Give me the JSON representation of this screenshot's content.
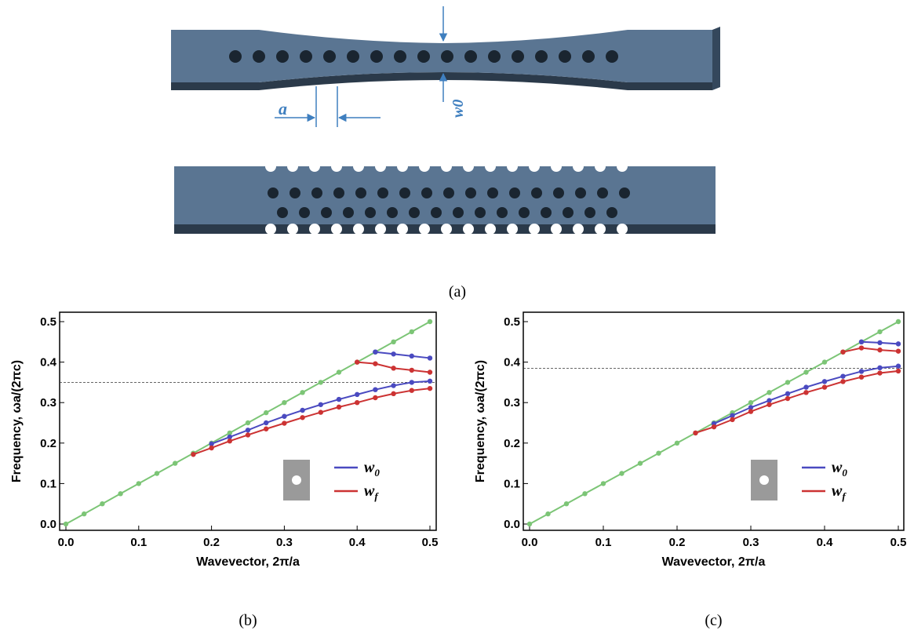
{
  "panel_a": {
    "caption": "(a)",
    "label_a": "a",
    "label_w0": "w0"
  },
  "chart_data": [
    {
      "type": "line",
      "caption": "(b)",
      "xlabel": "Wavevector, 2π/a",
      "ylabel": "Frequency, ωa/(2πc)",
      "xlim": [
        0,
        0.5
      ],
      "ylim": [
        0,
        0.5
      ],
      "xticks": [
        {
          "value": 0,
          "label": "0.0"
        },
        0.1,
        0.2,
        0.3,
        0.4,
        0.5
      ],
      "yticks": [
        {
          "value": 0,
          "label": "0.0"
        },
        0.1,
        0.2,
        0.3,
        0.4,
        0.5
      ],
      "reference_line": 0.35,
      "series": [
        {
          "color": "#7cc576",
          "x": [
            0,
            0.025,
            0.05,
            0.075,
            0.1,
            0.125,
            0.15,
            0.175,
            0.2,
            0.225,
            0.25,
            0.275,
            0.3,
            0.325,
            0.35,
            0.375,
            0.4,
            0.425,
            0.45,
            0.475,
            0.5
          ],
          "values": [
            0,
            0.025,
            0.05,
            0.075,
            0.1,
            0.125,
            0.15,
            0.175,
            0.2,
            0.225,
            0.25,
            0.275,
            0.3,
            0.325,
            0.35,
            0.375,
            0.4,
            0.425,
            0.45,
            0.475,
            0.5
          ]
        },
        {
          "name": "w0",
          "color": "#4a4ac0",
          "x": [
            0.2,
            0.225,
            0.25,
            0.275,
            0.3,
            0.325,
            0.35,
            0.375,
            0.4,
            0.425,
            0.45,
            0.475,
            0.5
          ],
          "values": [
            0.198,
            0.215,
            0.232,
            0.25,
            0.266,
            0.281,
            0.295,
            0.308,
            0.32,
            0.332,
            0.342,
            0.35,
            0.353
          ]
        },
        {
          "name": "w0",
          "color": "#4a4ac0",
          "x": [
            0.425,
            0.45,
            0.475,
            0.5
          ],
          "values": [
            0.425,
            0.42,
            0.415,
            0.41
          ]
        },
        {
          "name": "wf",
          "color": "#cc3333",
          "x": [
            0.175,
            0.2,
            0.225,
            0.25,
            0.275,
            0.3,
            0.325,
            0.35,
            0.375,
            0.4,
            0.425,
            0.45,
            0.475,
            0.5
          ],
          "values": [
            0.172,
            0.188,
            0.205,
            0.22,
            0.235,
            0.249,
            0.263,
            0.276,
            0.289,
            0.3,
            0.312,
            0.322,
            0.33,
            0.335
          ]
        },
        {
          "name": "wf",
          "color": "#cc3333",
          "x": [
            0.4,
            0.425,
            0.45,
            0.475,
            0.5
          ],
          "values": [
            0.4,
            0.396,
            0.385,
            0.38,
            0.375
          ]
        }
      ]
    },
    {
      "type": "line",
      "caption": "(c)",
      "xlabel": "Wavevector, 2π/a",
      "ylabel": "Frequency, ωa/(2πc)",
      "xlim": [
        0,
        0.5
      ],
      "ylim": [
        0,
        0.5
      ],
      "xticks": [
        {
          "value": 0,
          "label": "0.0"
        },
        0.1,
        0.2,
        0.3,
        0.4,
        0.5
      ],
      "yticks": [
        {
          "value": 0,
          "label": "0.0"
        },
        0.1,
        0.2,
        0.3,
        0.4,
        0.5
      ],
      "reference_line": 0.385,
      "series": [
        {
          "color": "#7cc576",
          "x": [
            0,
            0.025,
            0.05,
            0.075,
            0.1,
            0.125,
            0.15,
            0.175,
            0.2,
            0.225,
            0.25,
            0.275,
            0.3,
            0.325,
            0.35,
            0.375,
            0.4,
            0.425,
            0.45,
            0.475,
            0.5
          ],
          "values": [
            0,
            0.025,
            0.05,
            0.075,
            0.1,
            0.125,
            0.15,
            0.175,
            0.2,
            0.225,
            0.25,
            0.275,
            0.3,
            0.325,
            0.35,
            0.375,
            0.4,
            0.425,
            0.45,
            0.475,
            0.5
          ]
        },
        {
          "name": "w0",
          "color": "#4a4ac0",
          "x": [
            0.25,
            0.275,
            0.3,
            0.325,
            0.35,
            0.375,
            0.4,
            0.425,
            0.45,
            0.475,
            0.5
          ],
          "values": [
            0.248,
            0.268,
            0.288,
            0.305,
            0.322,
            0.338,
            0.352,
            0.365,
            0.377,
            0.386,
            0.39
          ]
        },
        {
          "name": "w0",
          "color": "#4a4ac0",
          "x": [
            0.45,
            0.475,
            0.5
          ],
          "values": [
            0.45,
            0.448,
            0.445
          ]
        },
        {
          "name": "wf",
          "color": "#cc3333",
          "x": [
            0.225,
            0.25,
            0.275,
            0.3,
            0.325,
            0.35,
            0.375,
            0.4,
            0.425,
            0.45,
            0.475,
            0.5
          ],
          "values": [
            0.225,
            0.24,
            0.258,
            0.278,
            0.295,
            0.31,
            0.325,
            0.338,
            0.352,
            0.363,
            0.373,
            0.378
          ]
        },
        {
          "name": "wf",
          "color": "#cc3333",
          "x": [
            0.425,
            0.45,
            0.475,
            0.5
          ],
          "values": [
            0.425,
            0.435,
            0.43,
            0.427
          ]
        }
      ]
    }
  ]
}
